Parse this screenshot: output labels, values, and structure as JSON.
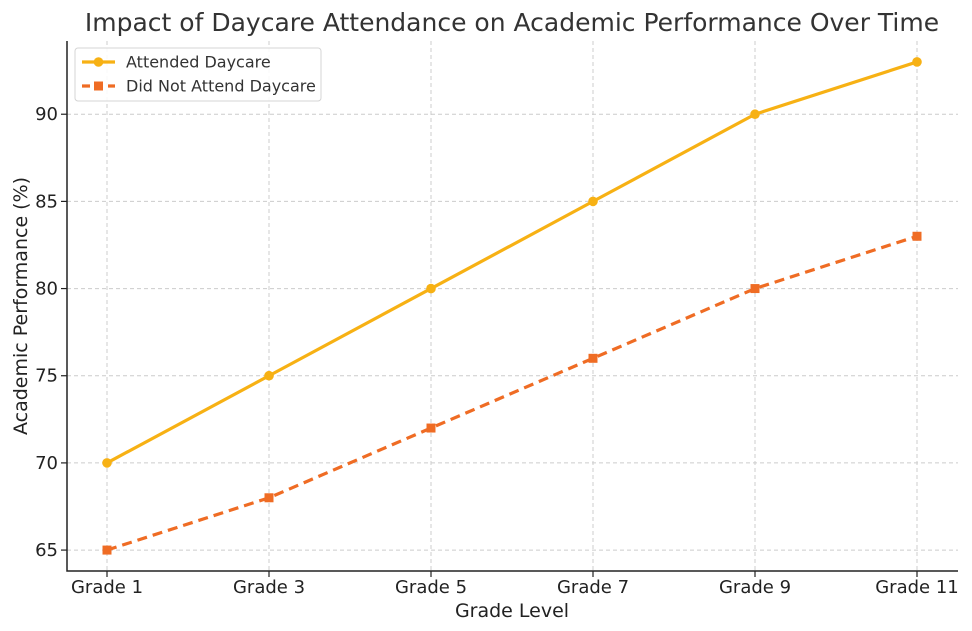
{
  "chart_data": {
    "type": "line",
    "title": "Impact of Daycare Attendance on Academic Performance Over Time",
    "xlabel": "Grade Level",
    "ylabel": "Academic Performance (%)",
    "categories": [
      "Grade 1",
      "Grade 3",
      "Grade 5",
      "Grade 7",
      "Grade 9",
      "Grade 11"
    ],
    "ylim": [
      63.8,
      94.2
    ],
    "yticks": [
      65,
      70,
      75,
      80,
      85,
      90
    ],
    "grid": true,
    "legend_position": "top-left",
    "series": [
      {
        "name": "Attended Daycare",
        "values": [
          70,
          75,
          80,
          85,
          90,
          93
        ],
        "color": "#f7b114",
        "marker": "circle",
        "line_style": "solid"
      },
      {
        "name": "Did Not Attend Daycare",
        "values": [
          65,
          68,
          72,
          76,
          80,
          83
        ],
        "color": "#ef6c24",
        "marker": "square",
        "line_style": "dashed"
      }
    ]
  }
}
